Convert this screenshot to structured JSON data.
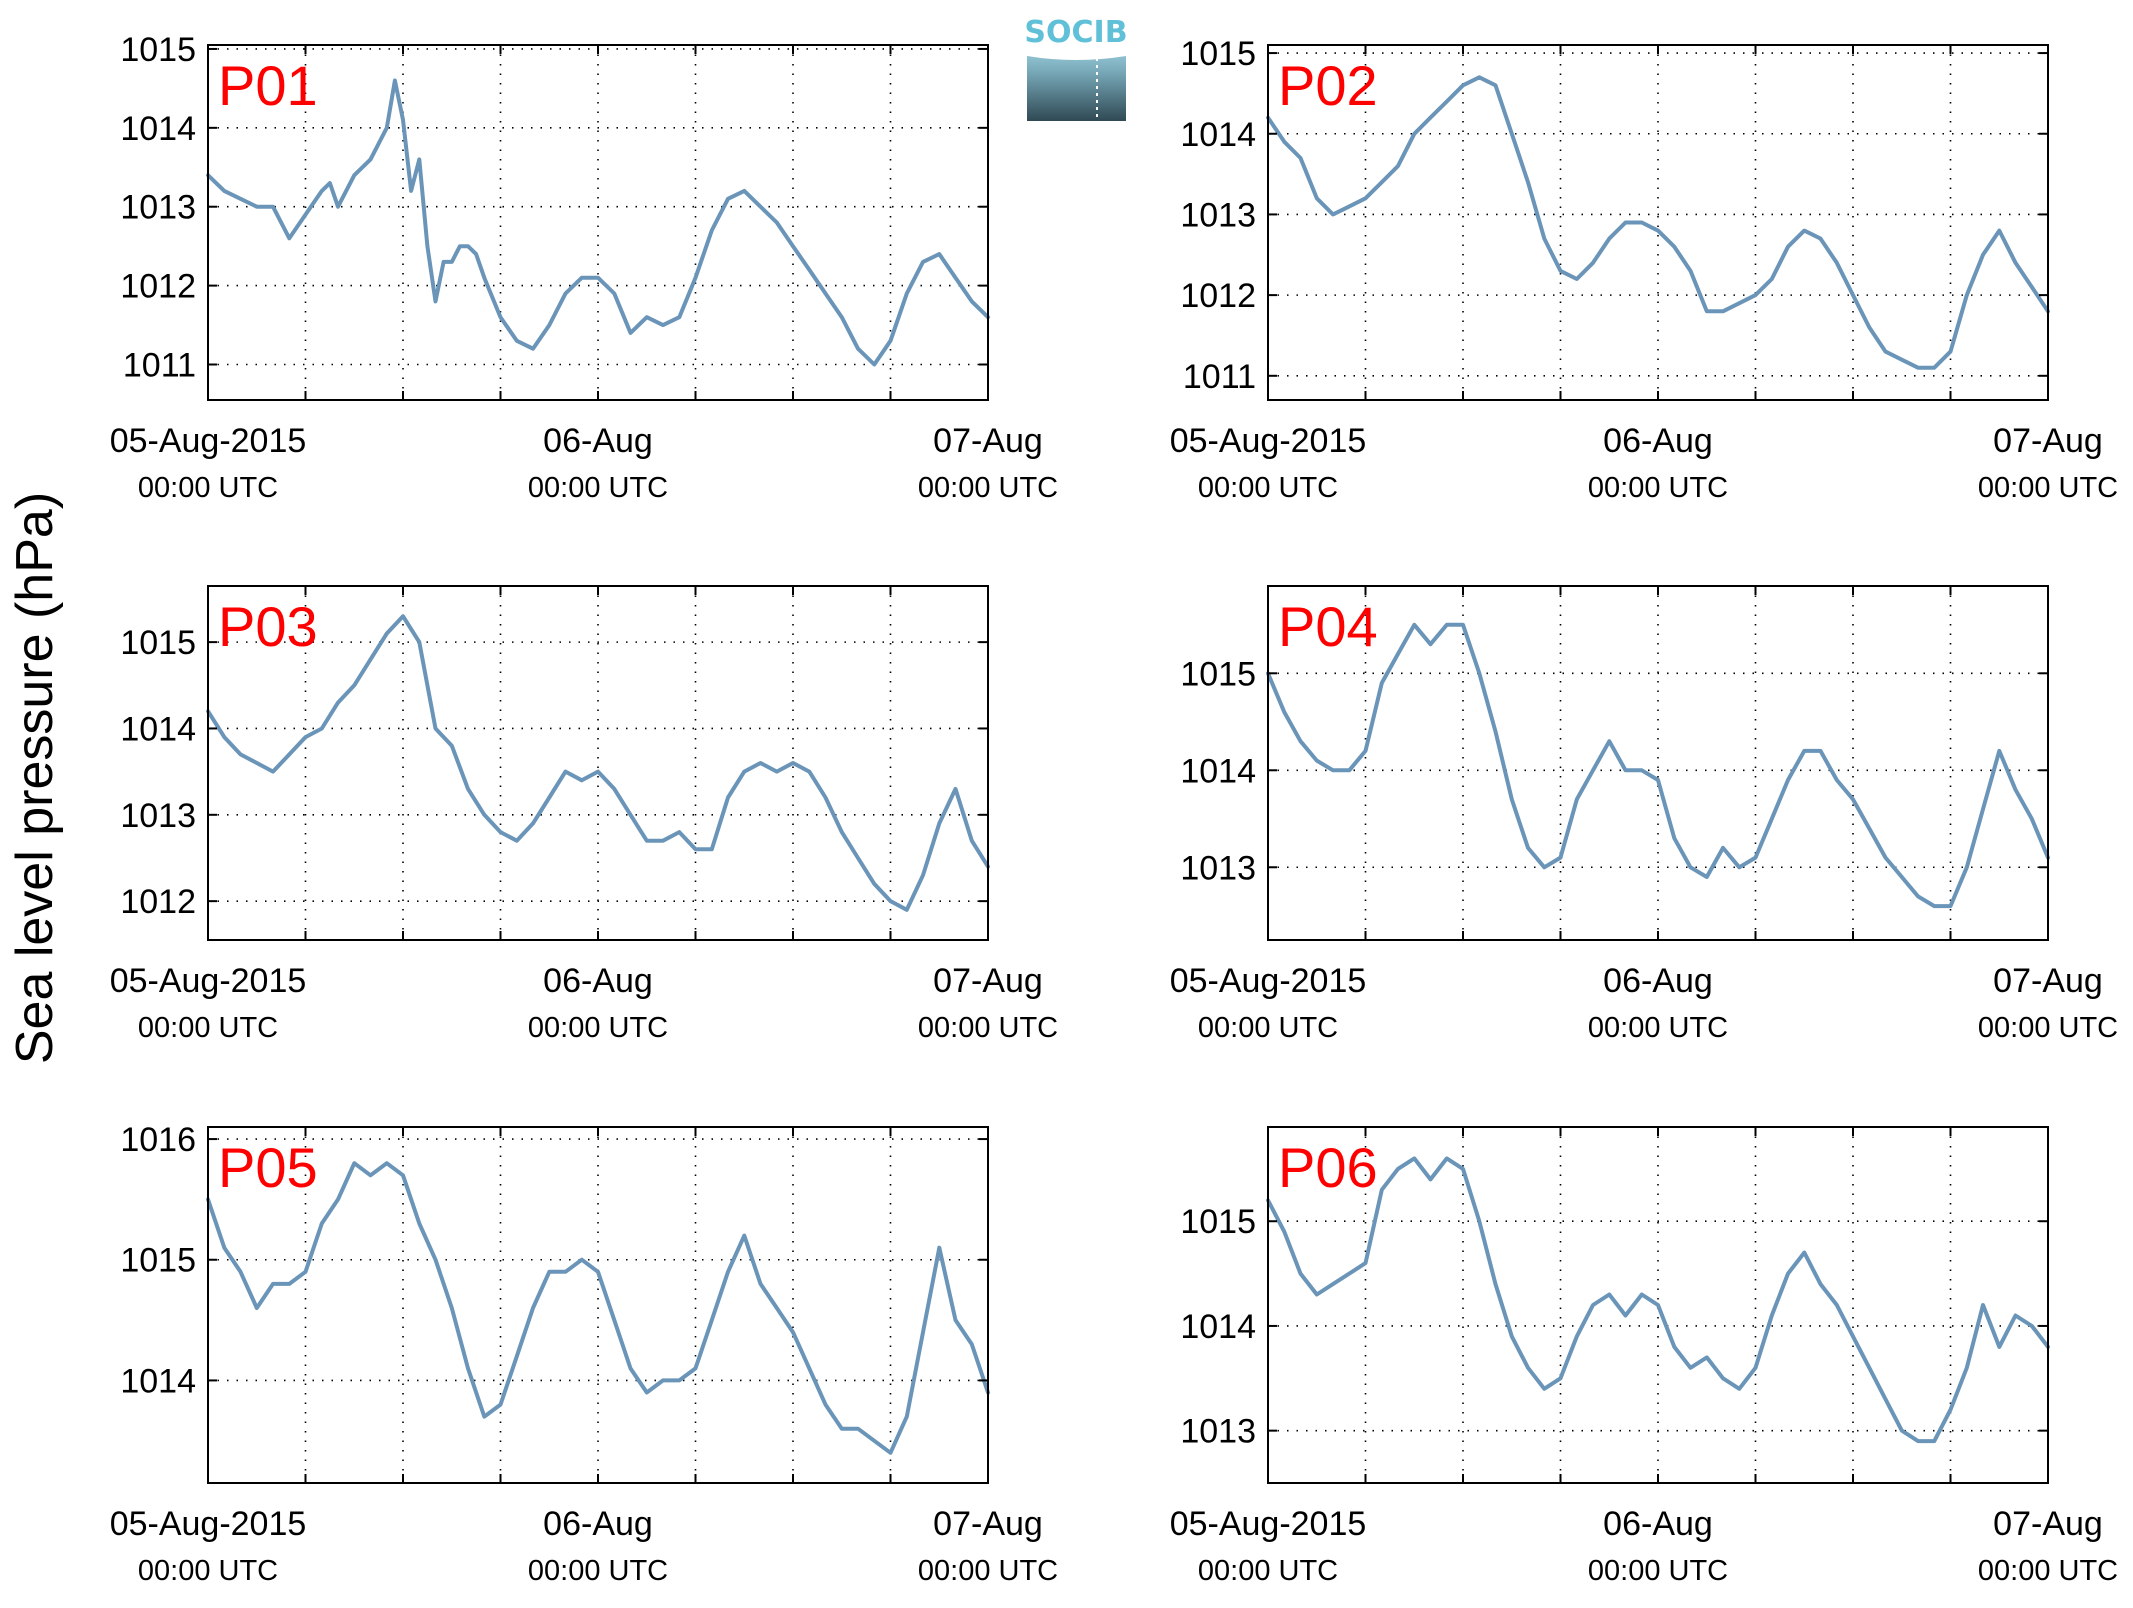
{
  "figure": {
    "ylabel": "Sea level pressure (hPa)",
    "logo_text": "SOCIB",
    "line_color": "#6a95b8",
    "panel_label_color": "#ff0000",
    "x_tick_labels": [
      {
        "date": "05-Aug-2015",
        "time": "00:00 UTC"
      },
      {
        "date": "06-Aug",
        "time": "00:00 UTC"
      },
      {
        "date": "07-Aug",
        "time": "00:00 UTC"
      }
    ]
  },
  "chart_data": [
    {
      "type": "line",
      "panel": "P01",
      "x_unit": "hours since 05-Aug-2015 00:00 UTC",
      "xlim": [
        0,
        48
      ],
      "ylim": [
        1010.55,
        1015.05
      ],
      "yticks": [
        1011,
        1012,
        1013,
        1014,
        1015
      ],
      "grid": true,
      "x": [
        0,
        1,
        2,
        3,
        4,
        5,
        6,
        7,
        7.5,
        8,
        9,
        10,
        11,
        11.5,
        12,
        12.5,
        13,
        13.5,
        14,
        14.5,
        15,
        15.5,
        16,
        16.5,
        17,
        18,
        19,
        20,
        21,
        22,
        23,
        24,
        25,
        26,
        27,
        28,
        29,
        30,
        31,
        32,
        33,
        34,
        35,
        36,
        37,
        38,
        39,
        40,
        41,
        42,
        43,
        44,
        45,
        46,
        47,
        48
      ],
      "y": [
        1013.4,
        1013.2,
        1013.1,
        1013.0,
        1013.0,
        1012.6,
        1012.9,
        1013.2,
        1013.3,
        1013.0,
        1013.4,
        1013.6,
        1014.0,
        1014.6,
        1014.1,
        1013.2,
        1013.6,
        1012.5,
        1011.8,
        1012.3,
        1012.3,
        1012.5,
        1012.5,
        1012.4,
        1012.1,
        1011.6,
        1011.3,
        1011.2,
        1011.5,
        1011.9,
        1012.1,
        1012.1,
        1011.9,
        1011.4,
        1011.6,
        1011.5,
        1011.6,
        1012.1,
        1012.7,
        1013.1,
        1013.2,
        1013.0,
        1012.8,
        1012.5,
        1012.2,
        1011.9,
        1011.6,
        1011.2,
        1011.0,
        1011.3,
        1011.9,
        1012.3,
        1012.4,
        1012.1,
        1011.8,
        1011.6
      ]
    },
    {
      "type": "line",
      "panel": "P02",
      "x_unit": "hours since 05-Aug-2015 00:00 UTC",
      "xlim": [
        0,
        48
      ],
      "ylim": [
        1010.7,
        1015.1
      ],
      "yticks": [
        1011,
        1012,
        1013,
        1014,
        1015
      ],
      "grid": true,
      "x": [
        0,
        1,
        2,
        3,
        4,
        5,
        6,
        7,
        8,
        9,
        10,
        11,
        12,
        13,
        14,
        15,
        16,
        17,
        18,
        19,
        20,
        21,
        22,
        23,
        24,
        25,
        26,
        27,
        28,
        29,
        30,
        31,
        32,
        33,
        34,
        35,
        36,
        37,
        38,
        39,
        40,
        41,
        42,
        43,
        44,
        45,
        46,
        47,
        48
      ],
      "y": [
        1014.2,
        1013.9,
        1013.7,
        1013.2,
        1013.0,
        1013.1,
        1013.2,
        1013.4,
        1013.6,
        1014.0,
        1014.2,
        1014.4,
        1014.6,
        1014.7,
        1014.6,
        1014.0,
        1013.4,
        1012.7,
        1012.3,
        1012.2,
        1012.4,
        1012.7,
        1012.9,
        1012.9,
        1012.8,
        1012.6,
        1012.3,
        1011.8,
        1011.8,
        1011.9,
        1012.0,
        1012.2,
        1012.6,
        1012.8,
        1012.7,
        1012.4,
        1012.0,
        1011.6,
        1011.3,
        1011.2,
        1011.1,
        1011.1,
        1011.3,
        1012.0,
        1012.5,
        1012.8,
        1012.4,
        1012.1,
        1011.8
      ]
    },
    {
      "type": "line",
      "panel": "P03",
      "x_unit": "hours since 05-Aug-2015 00:00 UTC",
      "xlim": [
        0,
        48
      ],
      "ylim": [
        1011.55,
        1015.65
      ],
      "yticks": [
        1012,
        1013,
        1014,
        1015
      ],
      "grid": true,
      "x": [
        0,
        1,
        2,
        3,
        4,
        5,
        6,
        7,
        8,
        9,
        10,
        11,
        12,
        13,
        14,
        15,
        16,
        17,
        18,
        19,
        20,
        21,
        22,
        23,
        24,
        25,
        26,
        27,
        28,
        29,
        30,
        31,
        32,
        33,
        34,
        35,
        36,
        37,
        38,
        39,
        40,
        41,
        42,
        43,
        44,
        45,
        46,
        47,
        48
      ],
      "y": [
        1014.2,
        1013.9,
        1013.7,
        1013.6,
        1013.5,
        1013.7,
        1013.9,
        1014.0,
        1014.3,
        1014.5,
        1014.8,
        1015.1,
        1015.3,
        1015.0,
        1014.0,
        1013.8,
        1013.3,
        1013.0,
        1012.8,
        1012.7,
        1012.9,
        1013.2,
        1013.5,
        1013.4,
        1013.5,
        1013.3,
        1013.0,
        1012.7,
        1012.7,
        1012.8,
        1012.6,
        1012.6,
        1013.2,
        1013.5,
        1013.6,
        1013.5,
        1013.6,
        1013.5,
        1013.2,
        1012.8,
        1012.5,
        1012.2,
        1012.0,
        1011.9,
        1012.3,
        1012.9,
        1013.3,
        1012.7,
        1012.4
      ]
    },
    {
      "type": "line",
      "panel": "P04",
      "x_unit": "hours since 05-Aug-2015 00:00 UTC",
      "xlim": [
        0,
        48
      ],
      "ylim": [
        1012.25,
        1015.9
      ],
      "yticks": [
        1013,
        1014,
        1015
      ],
      "grid": true,
      "x": [
        0,
        1,
        2,
        3,
        4,
        5,
        6,
        7,
        8,
        9,
        10,
        11,
        12,
        13,
        14,
        15,
        16,
        17,
        18,
        19,
        20,
        21,
        22,
        23,
        24,
        25,
        26,
        27,
        28,
        29,
        30,
        31,
        32,
        33,
        34,
        35,
        36,
        37,
        38,
        39,
        40,
        41,
        42,
        43,
        44,
        45,
        46,
        47,
        48
      ],
      "y": [
        1015.0,
        1014.6,
        1014.3,
        1014.1,
        1014.0,
        1014.0,
        1014.2,
        1014.9,
        1015.2,
        1015.5,
        1015.3,
        1015.5,
        1015.5,
        1015.0,
        1014.4,
        1013.7,
        1013.2,
        1013.0,
        1013.1,
        1013.7,
        1014.0,
        1014.3,
        1014.0,
        1014.0,
        1013.9,
        1013.3,
        1013.0,
        1012.9,
        1013.2,
        1013.0,
        1013.1,
        1013.5,
        1013.9,
        1014.2,
        1014.2,
        1013.9,
        1013.7,
        1013.4,
        1013.1,
        1012.9,
        1012.7,
        1012.6,
        1012.6,
        1013.0,
        1013.6,
        1014.2,
        1013.8,
        1013.5,
        1013.1
      ]
    },
    {
      "type": "line",
      "panel": "P05",
      "x_unit": "hours since 05-Aug-2015 00:00 UTC",
      "xlim": [
        0,
        48
      ],
      "ylim": [
        1013.15,
        1016.1
      ],
      "yticks": [
        1014,
        1015,
        1016
      ],
      "grid": true,
      "x": [
        0,
        1,
        2,
        3,
        4,
        5,
        6,
        7,
        8,
        9,
        10,
        11,
        12,
        13,
        14,
        15,
        16,
        17,
        18,
        19,
        20,
        21,
        22,
        23,
        24,
        25,
        26,
        27,
        28,
        29,
        30,
        31,
        32,
        33,
        34,
        35,
        36,
        37,
        38,
        39,
        40,
        41,
        42,
        43,
        44,
        45,
        46,
        47,
        48
      ],
      "y": [
        1015.5,
        1015.1,
        1014.9,
        1014.6,
        1014.8,
        1014.8,
        1014.9,
        1015.3,
        1015.5,
        1015.8,
        1015.7,
        1015.8,
        1015.7,
        1015.3,
        1015.0,
        1014.6,
        1014.1,
        1013.7,
        1013.8,
        1014.2,
        1014.6,
        1014.9,
        1014.9,
        1015.0,
        1014.9,
        1014.5,
        1014.1,
        1013.9,
        1014.0,
        1014.0,
        1014.1,
        1014.5,
        1014.9,
        1015.2,
        1014.8,
        1014.6,
        1014.4,
        1014.1,
        1013.8,
        1013.6,
        1013.6,
        1013.5,
        1013.4,
        1013.7,
        1014.4,
        1015.1,
        1014.5,
        1014.3,
        1013.9
      ]
    },
    {
      "type": "line",
      "panel": "P06",
      "x_unit": "hours since 05-Aug-2015 00:00 UTC",
      "xlim": [
        0,
        48
      ],
      "ylim": [
        1012.5,
        1015.9
      ],
      "yticks": [
        1013,
        1014,
        1015
      ],
      "grid": true,
      "x": [
        0,
        1,
        2,
        3,
        4,
        5,
        6,
        7,
        8,
        9,
        10,
        11,
        12,
        13,
        14,
        15,
        16,
        17,
        18,
        19,
        20,
        21,
        22,
        23,
        24,
        25,
        26,
        27,
        28,
        29,
        30,
        31,
        32,
        33,
        34,
        35,
        36,
        37,
        38,
        39,
        40,
        41,
        42,
        43,
        44,
        45,
        46,
        47,
        48
      ],
      "y": [
        1015.2,
        1014.9,
        1014.5,
        1014.3,
        1014.4,
        1014.5,
        1014.6,
        1015.3,
        1015.5,
        1015.6,
        1015.4,
        1015.6,
        1015.5,
        1015.0,
        1014.4,
        1013.9,
        1013.6,
        1013.4,
        1013.5,
        1013.9,
        1014.2,
        1014.3,
        1014.1,
        1014.3,
        1014.2,
        1013.8,
        1013.6,
        1013.7,
        1013.5,
        1013.4,
        1013.6,
        1014.1,
        1014.5,
        1014.7,
        1014.4,
        1014.2,
        1013.9,
        1013.6,
        1013.3,
        1013.0,
        1012.9,
        1012.9,
        1013.2,
        1013.6,
        1014.2,
        1013.8,
        1014.1,
        1014.0,
        1013.8
      ]
    }
  ]
}
